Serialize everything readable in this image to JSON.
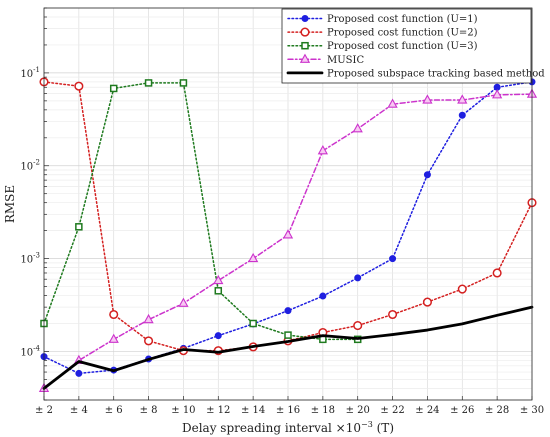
{
  "chart_data": {
    "type": "line",
    "xlabel_text": "Delay spreading interval ×10",
    "xlabel_sup": "−3",
    "xlabel_unit": " (T)",
    "ylabel": "RMSE",
    "x_tick_labels": [
      "± 2",
      "± 4",
      "± 6",
      "± 8",
      "± 10",
      "± 12",
      "± 14",
      "± 16",
      "± 18",
      "± 20",
      "± 22",
      "± 24",
      "± 26",
      "± 28",
      "± 30"
    ],
    "x": [
      2,
      4,
      6,
      8,
      10,
      12,
      14,
      16,
      18,
      20,
      22,
      24,
      26,
      28,
      30
    ],
    "xlim": [
      2,
      30
    ],
    "ylim": [
      3e-05,
      0.5
    ],
    "y_scale": "log",
    "y_ticks": [
      {
        "value": 0.0001,
        "base": "10",
        "exp": "-4"
      },
      {
        "value": 0.001,
        "base": "10",
        "exp": "-3"
      },
      {
        "value": 0.01,
        "base": "10",
        "exp": "-2"
      },
      {
        "value": 0.1,
        "base": "10",
        "exp": "-1"
      }
    ],
    "grid": true,
    "legend_position": "top-right",
    "series": [
      {
        "name": "Proposed cost function (U=1)",
        "color": "#1f1fe0",
        "line_style": "dotted",
        "marker": "filled-circle",
        "values": [
          8.8e-05,
          5.8e-05,
          6.3e-05,
          8.3e-05,
          0.000108,
          0.000148,
          0.000198,
          0.000275,
          0.000395,
          0.00062,
          0.001,
          0.008,
          0.035,
          0.07,
          0.08
        ]
      },
      {
        "name": "Proposed cost function (U=2)",
        "color": "#d42020",
        "line_style": "dotted",
        "marker": "open-circle",
        "values": [
          0.08,
          0.072,
          0.00025,
          0.00013,
          0.000102,
          0.000102,
          0.000112,
          0.00013,
          0.00016,
          0.00019,
          0.00025,
          0.00034,
          0.00047,
          0.0007,
          0.004
        ]
      },
      {
        "name": "Proposed cost function (U=3)",
        "color": "#1f7a1f",
        "line_style": "dotted",
        "marker": "square",
        "values": [
          0.0002,
          0.0022,
          0.068,
          0.078,
          0.078,
          0.00045,
          0.0002,
          0.00015,
          0.000135,
          0.000135,
          null,
          null,
          null,
          null,
          null
        ]
      },
      {
        "name": "MUSIC",
        "color": "#cc33cc",
        "line_style": "dash-dot",
        "marker": "triangle",
        "values": [
          4e-05,
          8e-05,
          0.000135,
          0.00022,
          0.00033,
          0.00058,
          0.001,
          0.0018,
          0.0145,
          0.025,
          0.046,
          0.051,
          0.051,
          0.058,
          0.059
        ]
      },
      {
        "name": "Proposed subspace tracking based method",
        "color": "#000000",
        "line_style": "solid",
        "marker": "none",
        "values": [
          4e-05,
          7.8e-05,
          6.2e-05,
          8.2e-05,
          0.000105,
          9.8e-05,
          0.000113,
          0.000128,
          0.000148,
          0.000138,
          0.000152,
          0.00017,
          0.000198,
          0.000245,
          0.0003
        ]
      }
    ]
  }
}
